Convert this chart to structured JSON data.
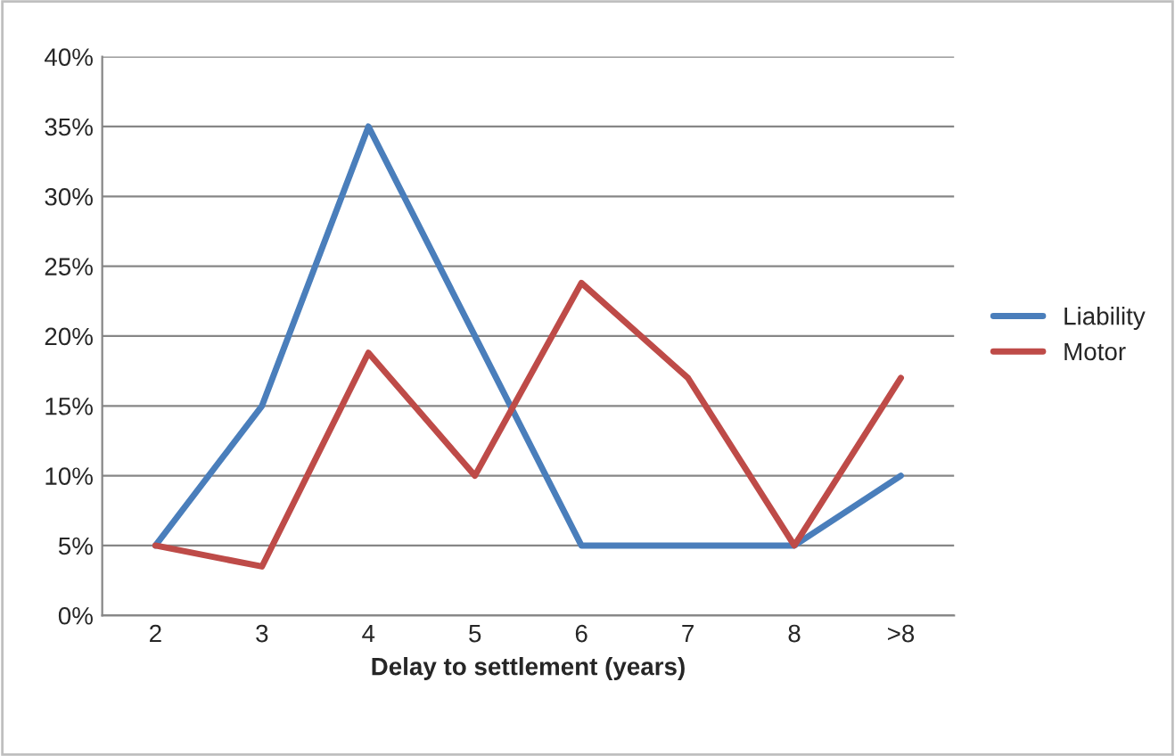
{
  "chart_data": {
    "type": "line",
    "xlabel": "Delay to settlement (years)",
    "categories": [
      "2",
      "3",
      "4",
      "5",
      "6",
      "7",
      "8",
      ">8"
    ],
    "series": [
      {
        "name": "Liability",
        "color": "#4a7ebb",
        "values": [
          5,
          15,
          35,
          20,
          5,
          5,
          5,
          10
        ]
      },
      {
        "name": "Motor",
        "color": "#be4b48",
        "values": [
          5,
          3.5,
          18.8,
          10,
          23.8,
          17,
          5,
          17
        ]
      }
    ],
    "ylim": [
      0,
      40
    ],
    "yticks": [
      {
        "value": 0,
        "label": "0%"
      },
      {
        "value": 5,
        "label": "5%"
      },
      {
        "value": 10,
        "label": "10%"
      },
      {
        "value": 15,
        "label": "15%"
      },
      {
        "value": 20,
        "label": "20%"
      },
      {
        "value": 25,
        "label": "25%"
      },
      {
        "value": 30,
        "label": "30%"
      },
      {
        "value": 35,
        "label": "35%"
      },
      {
        "value": 40,
        "label": "40%"
      }
    ],
    "grid": "y",
    "legend": "right",
    "marker": "none",
    "line_style": "solid"
  }
}
